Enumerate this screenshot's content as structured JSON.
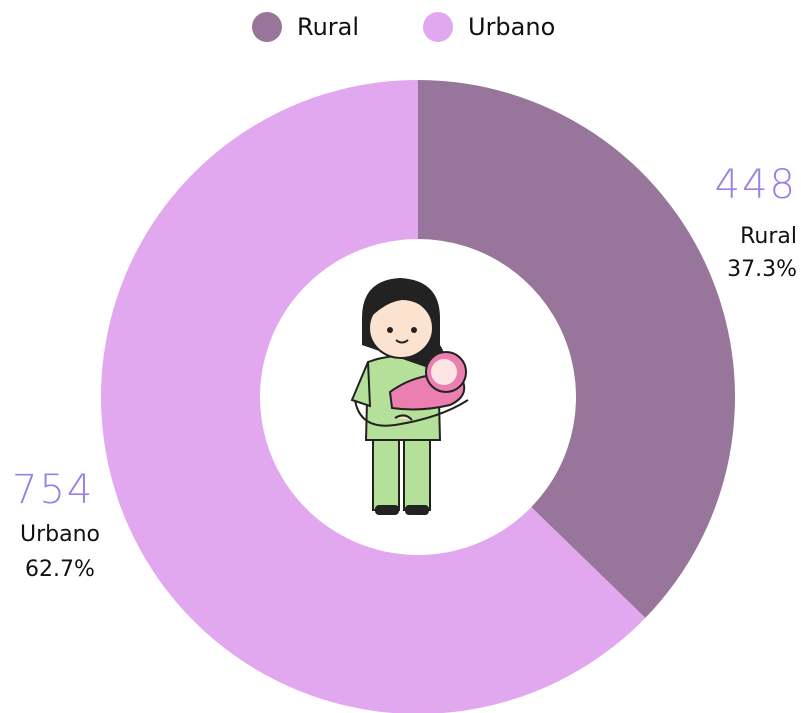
{
  "chart_data": {
    "type": "pie",
    "donut": true,
    "categories": [
      "Rural",
      "Urbano"
    ],
    "values": [
      448,
      754
    ],
    "percent_labels": [
      "37.3%",
      "62.7%"
    ],
    "colors": [
      "#98769c",
      "#e1a8ef"
    ],
    "legend": "top"
  }
}
